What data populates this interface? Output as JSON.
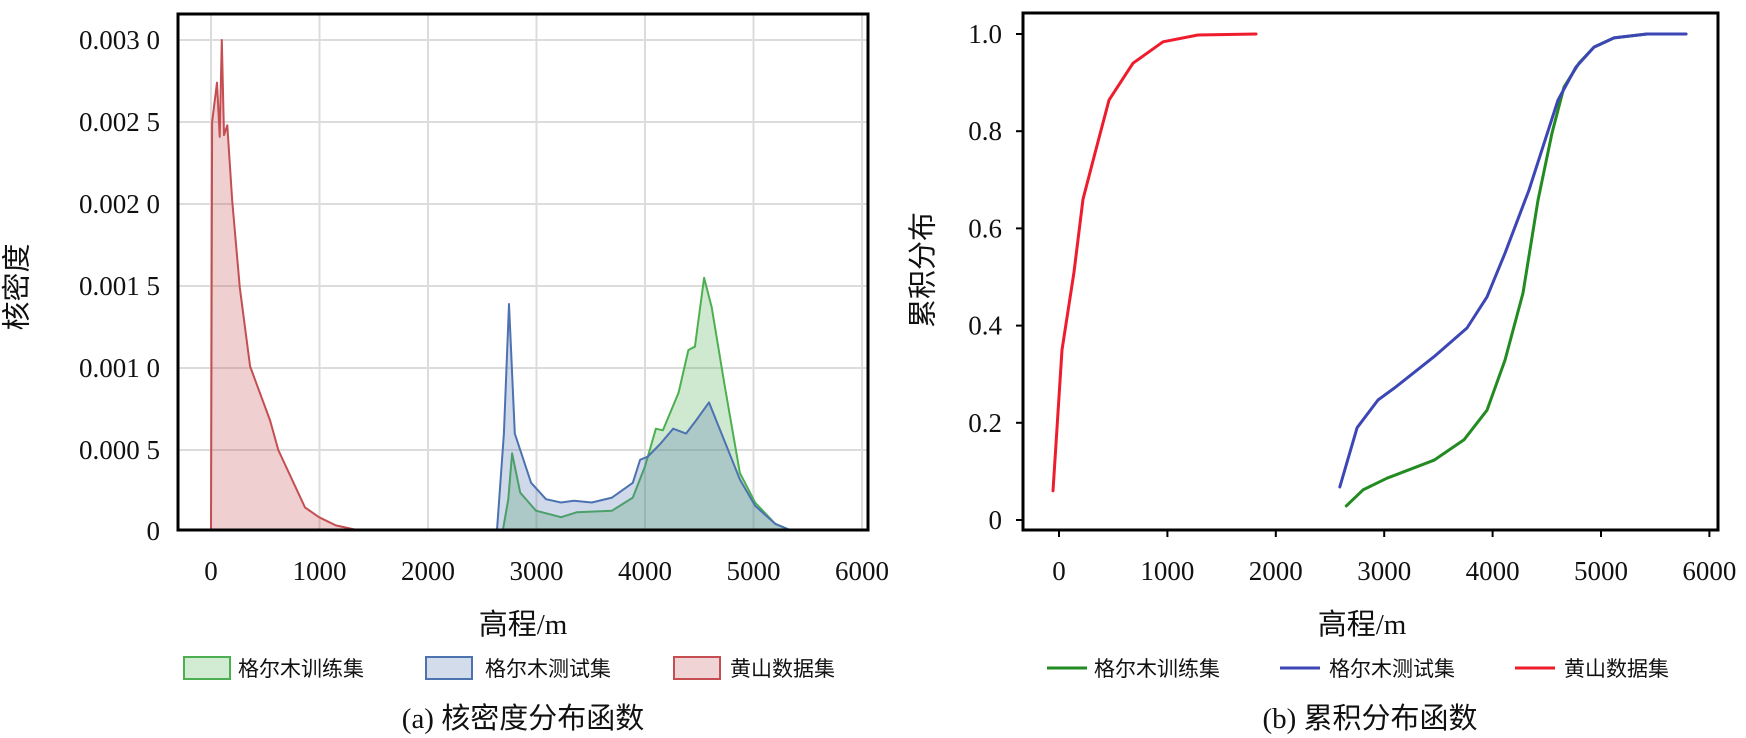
{
  "chart_data": [
    {
      "type": "area",
      "title": "(a) 核密度分布函数",
      "xlabel": "高程/m",
      "ylabel": "核密度",
      "xlim": [
        -200,
        6100
      ],
      "ylim": [
        0,
        0.0031
      ],
      "grid": true,
      "legend_position": "bottom",
      "x_ticks": [
        0,
        1000,
        2000,
        3000,
        4000,
        5000,
        6000
      ],
      "x_tick_labels": [
        "0",
        "1000",
        "2000",
        "3000",
        "4000",
        "5000",
        "6000"
      ],
      "y_ticks": [
        0,
        0.0005,
        0.001,
        0.0015,
        0.002,
        0.0025,
        0.003
      ],
      "y_tick_labels": [
        "0",
        "0.000 5",
        "0.001 0",
        "0.001 5",
        "0.002 0",
        "0.002 5",
        "0.003 0"
      ],
      "series": [
        {
          "name": "格尔木训练集",
          "color": "#4caf50",
          "x": [
            2690,
            2740,
            2775,
            2850,
            2995,
            3226,
            3370,
            3696,
            3888,
            4000,
            4100,
            4165,
            4310,
            4400,
            4460,
            4545,
            4615,
            4730,
            4875,
            5015,
            5200,
            5336
          ],
          "y": [
            0,
            0.0002,
            0.00048,
            0.00024,
            0.00013,
            9e-05,
            0.00012,
            0.00013,
            0.00021,
            0.0004,
            0.00063,
            0.00062,
            0.00085,
            0.00111,
            0.00113,
            0.00155,
            0.00137,
            0.00091,
            0.00036,
            0.00018,
            5e-05,
            0
          ]
        },
        {
          "name": "格尔木测试集",
          "color": "#4c72b0",
          "x": [
            2636,
            2700,
            2747,
            2800,
            2950,
            3088,
            3226,
            3345,
            3510,
            3696,
            3888,
            3955,
            4027,
            4145,
            4260,
            4378,
            4470,
            4590,
            4730,
            4875,
            5015,
            5200,
            5336
          ],
          "y": [
            0,
            0.0006,
            0.00139,
            0.0006,
            0.0003,
            0.0002,
            0.00018,
            0.00019,
            0.00018,
            0.00021,
            0.0003,
            0.00044,
            0.00046,
            0.00054,
            0.00063,
            0.0006,
            0.00068,
            0.00079,
            0.00056,
            0.00032,
            0.00016,
            5e-05,
            0
          ]
        },
        {
          "name": "黄山数据集",
          "color": "#c44e52",
          "x": [
            0,
            10,
            55,
            80,
            100,
            120,
            150,
            195,
            265,
            360,
            545,
            620,
            866,
            995,
            1150,
            1345
          ],
          "y": [
            0,
            0.0025,
            0.00274,
            0.00241,
            0.003,
            0.00242,
            0.00248,
            0.00202,
            0.00149,
            0.00101,
            0.00068,
            0.0005,
            0.00015,
            9e-05,
            4e-05,
            0
          ]
        }
      ]
    },
    {
      "type": "line",
      "title": "(b) 累积分布函数",
      "xlabel": "高程/m",
      "ylabel": "累积分布",
      "xlim": [
        -330,
        6100
      ],
      "ylim": [
        -0.02,
        1.05
      ],
      "grid": false,
      "legend_position": "bottom",
      "x_ticks": [
        0,
        1000,
        2000,
        3000,
        4000,
        5000,
        6000
      ],
      "x_tick_labels": [
        "0",
        "1000",
        "2000",
        "3000",
        "4000",
        "5000",
        "6000"
      ],
      "y_ticks": [
        0,
        0.2,
        0.4,
        0.6,
        0.8,
        1.0
      ],
      "y_tick_labels": [
        "0",
        "0.2",
        "0.4",
        "0.6",
        "0.8",
        "1.0"
      ],
      "series": [
        {
          "name": "格尔木训练集",
          "color": "#228b22",
          "x": [
            2650,
            2804,
            3026,
            3459,
            3736,
            3948,
            4114,
            4280,
            4419,
            4548,
            4659,
            4797,
            4935,
            5120,
            5424
          ],
          "y": [
            0.029,
            0.062,
            0.086,
            0.123,
            0.165,
            0.226,
            0.329,
            0.467,
            0.658,
            0.796,
            0.891,
            0.94,
            0.973,
            0.992,
            1.0
          ]
        },
        {
          "name": "格尔木测试集",
          "color": "#3c46b4",
          "x": [
            2590,
            2750,
            2943,
            3109,
            3459,
            3764,
            3948,
            4114,
            4336,
            4603,
            4769,
            4935,
            5120,
            5424,
            5785
          ],
          "y": [
            0.068,
            0.19,
            0.247,
            0.274,
            0.336,
            0.395,
            0.459,
            0.549,
            0.679,
            0.864,
            0.932,
            0.973,
            0.992,
            1.0,
            1.0
          ]
        },
        {
          "name": "黄山数据集",
          "color": "#ee1c2c",
          "x": [
            -55,
            28,
            138,
            221,
            332,
            461,
            683,
            959,
            1282,
            1817
          ],
          "y": [
            0.06,
            0.35,
            0.51,
            0.66,
            0.755,
            0.864,
            0.94,
            0.984,
            0.998,
            1.0
          ]
        }
      ]
    }
  ]
}
